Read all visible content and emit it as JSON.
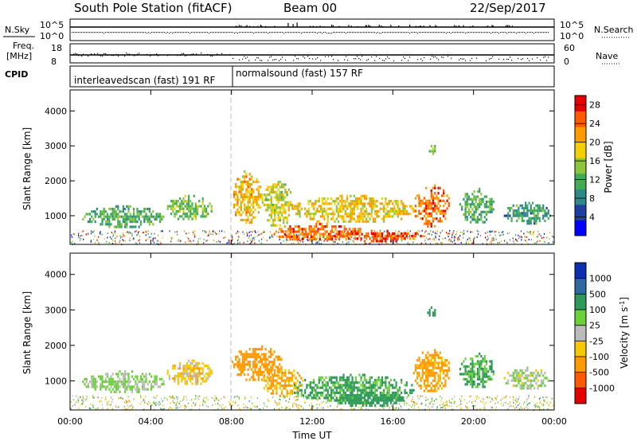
{
  "header": {
    "station_title": "South Pole Station (fitACF)",
    "beam": "Beam 00",
    "date": "22/Sep/2017"
  },
  "strip": {
    "nsky_label": "N.Sky",
    "nsearch_label": "N.Search",
    "nsky_ticks": [
      "10^5",
      "10^0"
    ],
    "nsearch_ticks": [
      "10^5",
      "10^0"
    ],
    "freq_label_1": "Freq.",
    "freq_label_2": "[MHz]",
    "freq_ticks": [
      "18",
      "8"
    ],
    "nave_label": "Nave",
    "nave_ticks": [
      "60",
      "0"
    ],
    "cpid_label": "CPID",
    "cpid_segments": [
      {
        "label": "interleavedscan (fast) 191 RF"
      },
      {
        "label": "normalsound (fast) 157 RF"
      }
    ]
  },
  "colors": {
    "power_scale": [
      "#0000ff",
      "#1f3fa0",
      "#2e8a8a",
      "#3fae52",
      "#8cc63f",
      "#f5d000",
      "#ff9900",
      "#ff5a00",
      "#e60000"
    ],
    "velocity_scale": [
      "#e60000",
      "#ff5a00",
      "#ff9900",
      "#f5c800",
      "#bbbbbb",
      "#6bd13a",
      "#2e9a5a",
      "#2d6aa0",
      "#0a2fb0"
    ]
  },
  "chart_data": [
    {
      "type": "heatmap",
      "name": "power",
      "ylabel": "Slant Range [km]",
      "xlabel": "Time UT",
      "x_ticks": [
        "00:00",
        "04:00",
        "08:00",
        "12:00",
        "16:00",
        "20:00",
        "00:00"
      ],
      "y_ticks": [
        "1000",
        "2000",
        "3000",
        "4000"
      ],
      "ylim": [
        180,
        4600
      ],
      "xlim_hours": [
        0,
        24
      ],
      "colorbar": {
        "label": "Power [dB]",
        "ticks": [
          "4",
          "8",
          "12",
          "16",
          "20",
          "24",
          "28"
        ],
        "range": [
          0,
          30
        ]
      },
      "regions": [
        {
          "t0": 0.6,
          "t1": 4.6,
          "r0": 700,
          "r1": 1300,
          "level": 12
        },
        {
          "t0": 4.8,
          "t1": 7.0,
          "r0": 900,
          "r1": 1600,
          "level": 14
        },
        {
          "t0": 8.0,
          "t1": 9.5,
          "r0": 800,
          "r1": 2300,
          "level": 20
        },
        {
          "t0": 9.5,
          "t1": 11.0,
          "r0": 700,
          "r1": 2000,
          "level": 17
        },
        {
          "t0": 10.0,
          "t1": 14.5,
          "r0": 300,
          "r1": 800,
          "level": 24
        },
        {
          "t0": 11.0,
          "t1": 17.0,
          "r0": 800,
          "r1": 1600,
          "level": 19
        },
        {
          "t0": 13.0,
          "t1": 17.5,
          "r0": 300,
          "r1": 600,
          "level": 26
        },
        {
          "t0": 17.0,
          "t1": 18.8,
          "r0": 700,
          "r1": 1900,
          "level": 24
        },
        {
          "t0": 19.3,
          "t1": 21.0,
          "r0": 800,
          "r1": 1800,
          "level": 12
        },
        {
          "t0": 21.5,
          "t1": 23.8,
          "r0": 800,
          "r1": 1400,
          "level": 10
        },
        {
          "t0": 17.7,
          "t1": 18.1,
          "r0": 2800,
          "r1": 3100,
          "level": 14
        }
      ]
    },
    {
      "type": "heatmap",
      "name": "velocity",
      "ylabel": "Slant Range [km]",
      "xlabel": "Time UT",
      "x_ticks": [
        "00:00",
        "04:00",
        "08:00",
        "12:00",
        "16:00",
        "20:00",
        "00:00"
      ],
      "y_ticks": [
        "1000",
        "2000",
        "3000",
        "4000"
      ],
      "ylim": [
        180,
        4600
      ],
      "xlim_hours": [
        0,
        24
      ],
      "colorbar": {
        "label": "Velocity [m s^-1]",
        "ticks": [
          "1000",
          "500",
          "100",
          "25",
          "-25",
          "-100",
          "-500",
          "-1000"
        ],
        "range": [
          -1200,
          1200
        ]
      },
      "regions": [
        {
          "t0": 0.6,
          "t1": 4.6,
          "r0": 700,
          "r1": 1300,
          "level": 40
        },
        {
          "t0": 4.8,
          "t1": 7.0,
          "r0": 900,
          "r1": 1600,
          "level": -60
        },
        {
          "t0": 8.0,
          "t1": 10.5,
          "r0": 1000,
          "r1": 2000,
          "level": -300
        },
        {
          "t0": 9.5,
          "t1": 11.5,
          "r0": 600,
          "r1": 1400,
          "level": -120
        },
        {
          "t0": 11.0,
          "t1": 17.0,
          "r0": 400,
          "r1": 1200,
          "level": 120
        },
        {
          "t0": 13.0,
          "t1": 16.5,
          "r0": 300,
          "r1": 700,
          "level": 300
        },
        {
          "t0": 17.0,
          "t1": 18.8,
          "r0": 700,
          "r1": 1900,
          "level": -140
        },
        {
          "t0": 19.3,
          "t1": 21.0,
          "r0": 800,
          "r1": 1800,
          "level": 110
        },
        {
          "t0": 21.5,
          "t1": 23.8,
          "r0": 800,
          "r1": 1400,
          "level": 20
        },
        {
          "t0": 17.7,
          "t1": 18.1,
          "r0": 2800,
          "r1": 3100,
          "level": 400
        }
      ]
    }
  ]
}
